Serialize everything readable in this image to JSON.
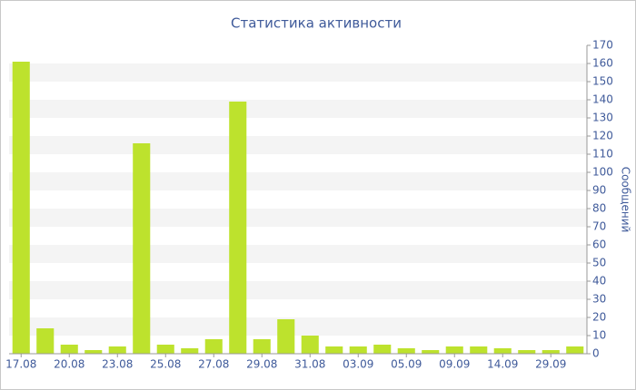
{
  "chart_data": {
    "type": "bar",
    "title": "Статистика активности",
    "y_label": "Сообщений",
    "categories": [
      "17.08",
      null,
      "20.08",
      null,
      "23.08",
      null,
      "25.08",
      null,
      "27.08",
      null,
      "29.08",
      null,
      "31.08",
      null,
      "03.09",
      null,
      "05.09",
      null,
      "09.09",
      null,
      "14.09",
      null,
      "29.09",
      null
    ],
    "values": [
      161,
      14,
      5,
      2,
      4,
      116,
      5,
      3,
      8,
      139,
      8,
      19,
      10,
      4,
      4,
      5,
      3,
      2,
      4,
      4,
      3,
      2,
      2,
      4
    ],
    "color": "#bde22d",
    "ylim": [
      0,
      170
    ],
    "yticks": [
      0,
      10,
      20,
      30,
      40,
      50,
      60,
      70,
      80,
      90,
      100,
      110,
      120,
      130,
      140,
      150,
      160,
      170
    ],
    "grid": true,
    "y_axis_side": "right"
  }
}
